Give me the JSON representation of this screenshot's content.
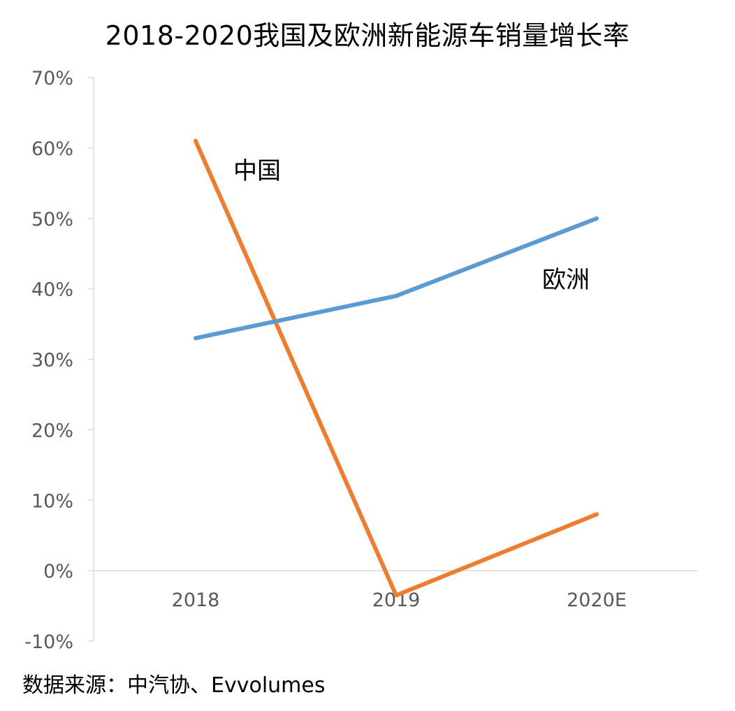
{
  "chart_data": {
    "type": "line",
    "title": "2018-2020我国及欧洲新能源车销量增长率",
    "xlabel": "",
    "ylabel": "",
    "categories": [
      "2018",
      "2019",
      "2020E"
    ],
    "y_ticks": [
      "-10%",
      "0%",
      "10%",
      "20%",
      "30%",
      "40%",
      "50%",
      "60%",
      "70%"
    ],
    "ylim": [
      -10,
      70
    ],
    "grid": false,
    "series": [
      {
        "name": "中国",
        "values": [
          61,
          -3.5,
          8
        ],
        "color": "#ED7D31"
      },
      {
        "name": "欧洲",
        "values": [
          33,
          39,
          50
        ],
        "color": "#5B9BD5"
      }
    ]
  },
  "source_note": "数据来源：中汽协、Evvolumes"
}
